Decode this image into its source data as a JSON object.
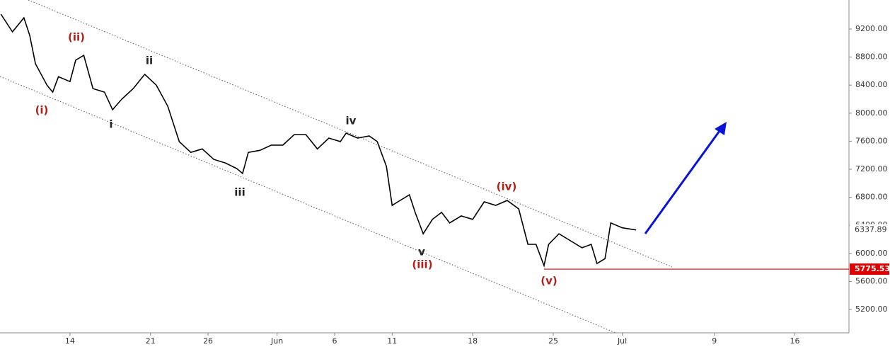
{
  "chart_data": {
    "type": "line",
    "color": "#000000",
    "x": [
      8,
      9,
      10,
      10.5,
      11,
      12,
      12.5,
      13,
      14,
      14.5,
      15.2,
      16,
      17,
      17.7,
      18.5,
      19.5,
      20.5,
      21.5,
      22.5,
      23.5,
      24.5,
      25.5,
      26.5,
      27.5,
      28.5,
      29,
      29.5,
      30.5,
      31.5,
      32.5,
      33.5,
      34.5,
      35.5,
      36.5,
      37.5,
      38,
      39,
      40,
      40.7,
      41.5,
      42,
      42.5,
      43.5,
      44,
      44.7,
      45.5,
      46.3,
      47,
      48,
      49,
      50,
      51,
      52,
      53,
      53.8,
      54.5,
      55.2,
      55.6,
      56.5,
      57.5,
      58.5,
      59.3,
      59.8,
      60.5,
      61,
      62,
      63.2
    ],
    "values": [
      9412,
      9160,
      9360,
      9110,
      8705,
      8400,
      8300,
      8520,
      8450,
      8755,
      8825,
      8350,
      8300,
      8050,
      8200,
      8350,
      8555,
      8400,
      8100,
      7594,
      7440,
      7490,
      7340,
      7290,
      7210,
      7140,
      7440,
      7470,
      7545,
      7545,
      7695,
      7695,
      7490,
      7645,
      7595,
      7715,
      7645,
      7675,
      7595,
      7240,
      6685,
      6735,
      6835,
      6585,
      6280,
      6485,
      6585,
      6435,
      6535,
      6485,
      6735,
      6685,
      6755,
      6635,
      6130,
      6130,
      5825,
      6130,
      6280,
      6180,
      6080,
      6130,
      5855,
      5925,
      6435,
      6365,
      6335
    ],
    "xlim": [
      7.92,
      81.7
    ],
    "xticks": [
      14,
      21,
      26,
      {
        "value": 32,
        "label": "Jun"
      },
      {
        "value": 37,
        "label": "6"
      },
      {
        "value": 42,
        "label": "11"
      },
      {
        "value": 49,
        "label": "18"
      },
      {
        "value": 56,
        "label": "25"
      },
      {
        "value": 62,
        "label": "Jul"
      },
      {
        "value": 70,
        "label": "9"
      },
      {
        "value": 77,
        "label": "16"
      }
    ],
    "ylim": [
      4867,
      9614
    ],
    "yticks": [
      {
        "value": 5200,
        "label": "5200.00"
      },
      {
        "value": 5600,
        "label": "5600.00"
      },
      {
        "value": 6000,
        "label": "6000.00"
      },
      {
        "value": 6400,
        "label": "6400.00"
      },
      {
        "value": 6800,
        "label": "6800.00"
      },
      {
        "value": 7200,
        "label": "7200.00"
      },
      {
        "value": 7600,
        "label": "7600.00"
      },
      {
        "value": 8000,
        "label": "8000.00"
      },
      {
        "value": 8400,
        "label": "8400.00"
      },
      {
        "value": 8800,
        "label": "8800.00"
      },
      {
        "value": 9200,
        "label": "9200.00"
      }
    ],
    "support_level": 5775.53,
    "support_color": "#e00000",
    "last_price": 6337.89,
    "wave_labels": [
      "(i)",
      "(ii)",
      "i",
      "ii",
      "iii",
      "iv",
      "v",
      "(iii)",
      "(iv)",
      "(v)"
    ]
  }
}
